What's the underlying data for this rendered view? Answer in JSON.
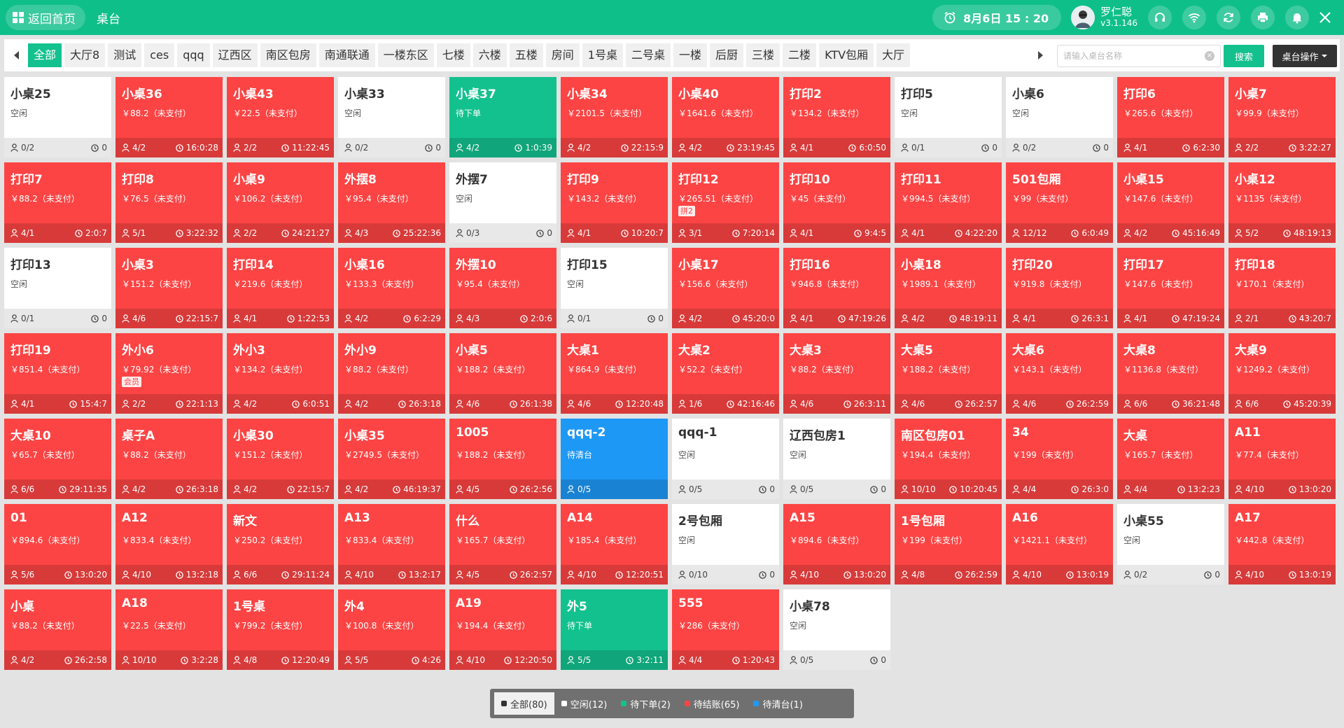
{
  "header": {
    "home_label": "返回首页",
    "title": "桌台",
    "datetime": "8月6日  15 : 20",
    "user_name": "罗仁聪",
    "version": "v3.1.146"
  },
  "colors": {
    "green": "#13c18e",
    "red": "#fc4444",
    "blue": "#1e98f5",
    "white": "#ffffff"
  },
  "areas": [
    "全部",
    "大厅8",
    "测试",
    "ces",
    "qqq",
    "辽西区",
    "南区包房",
    "南通联通",
    "一楼东区",
    "七楼",
    "六楼",
    "五楼",
    "房间",
    "1号桌",
    "二号桌",
    "一楼",
    "后厨",
    "三楼",
    "二楼",
    "KTV包厢",
    "大厅"
  ],
  "search": {
    "placeholder": "请输入桌台名称",
    "button": "搜索"
  },
  "ops_button": "桌台操作",
  "tables": [
    {
      "name": "小桌25",
      "status": "white",
      "info": "空闲",
      "guests": "0/2",
      "time": "0"
    },
    {
      "name": "小桌36",
      "status": "red",
      "info": "￥88.2（未支付）",
      "guests": "4/2",
      "time": "16:0:28"
    },
    {
      "name": "小桌43",
      "status": "red",
      "info": "￥22.5（未支付）",
      "guests": "2/2",
      "time": "11:22:45"
    },
    {
      "name": "小桌33",
      "status": "white",
      "info": "空闲",
      "guests": "0/2",
      "time": "0"
    },
    {
      "name": "小桌37",
      "status": "green",
      "info": "待下单",
      "guests": "4/2",
      "time": "1:0:39"
    },
    {
      "name": "小桌34",
      "status": "red",
      "info": "￥2101.5（未支付）",
      "guests": "4/2",
      "time": "22:15:9"
    },
    {
      "name": "小桌40",
      "status": "red",
      "info": "￥1641.6（未支付）",
      "guests": "4/2",
      "time": "23:19:45"
    },
    {
      "name": "打印2",
      "status": "red",
      "info": "￥134.2（未支付）",
      "guests": "4/1",
      "time": "6:0:50"
    },
    {
      "name": "打印5",
      "status": "white",
      "info": "空闲",
      "guests": "0/1",
      "time": "0"
    },
    {
      "name": "小桌6",
      "status": "white",
      "info": "空闲",
      "guests": "0/2",
      "time": "0"
    },
    {
      "name": "打印6",
      "status": "red",
      "info": "￥265.6（未支付）",
      "guests": "4/1",
      "time": "6:2:30"
    },
    {
      "name": "小桌7",
      "status": "red",
      "info": "￥99.9（未支付）",
      "guests": "2/2",
      "time": "3:22:27"
    },
    {
      "name": "打印7",
      "status": "red",
      "info": "￥88.2（未支付）",
      "guests": "4/1",
      "time": "2:0:7"
    },
    {
      "name": "打印8",
      "status": "red",
      "info": "￥76.5（未支付）",
      "guests": "5/1",
      "time": "3:22:32"
    },
    {
      "name": "小桌9",
      "status": "red",
      "info": "￥106.2（未支付）",
      "guests": "2/2",
      "time": "24:21:27"
    },
    {
      "name": "外摆8",
      "status": "red",
      "info": "￥95.4（未支付）",
      "guests": "4/3",
      "time": "25:22:36"
    },
    {
      "name": "外摆7",
      "status": "white",
      "info": "空闲",
      "guests": "0/3",
      "time": "0"
    },
    {
      "name": "打印9",
      "status": "red",
      "info": "￥143.2（未支付）",
      "guests": "4/1",
      "time": "10:20:7"
    },
    {
      "name": "打印12",
      "status": "red",
      "info": "￥265.51（未支付）",
      "tag": "拼2",
      "guests": "3/1",
      "time": "7:20:14"
    },
    {
      "name": "打印10",
      "status": "red",
      "info": "￥45（未支付）",
      "guests": "4/1",
      "time": "9:4:5"
    },
    {
      "name": "打印11",
      "status": "red",
      "info": "￥994.5（未支付）",
      "guests": "4/1",
      "time": "4:22:20"
    },
    {
      "name": "501包厢",
      "status": "red",
      "info": "￥99（未支付）",
      "guests": "12/12",
      "time": "6:0:49"
    },
    {
      "name": "小桌15",
      "status": "red",
      "info": "￥147.6（未支付）",
      "guests": "4/2",
      "time": "45:16:49"
    },
    {
      "name": "小桌12",
      "status": "red",
      "info": "￥1135（未支付）",
      "guests": "5/2",
      "time": "48:19:13"
    },
    {
      "name": "打印13",
      "status": "white",
      "info": "空闲",
      "guests": "0/1",
      "time": "0"
    },
    {
      "name": "小桌3",
      "status": "red",
      "info": "￥151.2（未支付）",
      "guests": "4/6",
      "time": "22:15:7"
    },
    {
      "name": "打印14",
      "status": "red",
      "info": "￥219.6（未支付）",
      "guests": "4/1",
      "time": "1:22:53"
    },
    {
      "name": "小桌16",
      "status": "red",
      "info": "￥133.3（未支付）",
      "guests": "4/2",
      "time": "6:2:29"
    },
    {
      "name": "外摆10",
      "status": "red",
      "info": "￥95.4（未支付）",
      "guests": "4/3",
      "time": "2:0:6"
    },
    {
      "name": "打印15",
      "status": "white",
      "info": "空闲",
      "guests": "0/1",
      "time": "0"
    },
    {
      "name": "小桌17",
      "status": "red",
      "info": "￥156.6（未支付）",
      "guests": "4/2",
      "time": "45:20:0"
    },
    {
      "name": "打印16",
      "status": "red",
      "info": "￥946.8（未支付）",
      "guests": "4/1",
      "time": "47:19:26"
    },
    {
      "name": "小桌18",
      "status": "red",
      "info": "￥1989.1（未支付）",
      "guests": "4/2",
      "time": "48:19:11"
    },
    {
      "name": "打印20",
      "status": "red",
      "info": "￥919.8（未支付）",
      "guests": "4/1",
      "time": "26:3:1"
    },
    {
      "name": "打印17",
      "status": "red",
      "info": "￥147.6（未支付）",
      "guests": "4/1",
      "time": "47:19:24"
    },
    {
      "name": "打印18",
      "status": "red",
      "info": "￥170.1（未支付）",
      "guests": "2/1",
      "time": "43:20:7"
    },
    {
      "name": "打印19",
      "status": "red",
      "info": "￥851.4（未支付）",
      "guests": "4/1",
      "time": "15:4:7"
    },
    {
      "name": "外小6",
      "status": "red",
      "info": "￥79.92（未支付）",
      "tag": "会员",
      "guests": "2/2",
      "time": "22:1:13"
    },
    {
      "name": "外小3",
      "status": "red",
      "info": "￥134.2（未支付）",
      "guests": "4/2",
      "time": "6:0:51"
    },
    {
      "name": "外小9",
      "status": "red",
      "info": "￥88.2（未支付）",
      "guests": "4/2",
      "time": "26:3:18"
    },
    {
      "name": "小桌5",
      "status": "red",
      "info": "￥188.2（未支付）",
      "guests": "4/6",
      "time": "26:1:38"
    },
    {
      "name": "大桌1",
      "status": "red",
      "info": "￥864.9（未支付）",
      "guests": "4/6",
      "time": "12:20:48"
    },
    {
      "name": "大桌2",
      "status": "red",
      "info": "￥52.2（未支付）",
      "guests": "1/6",
      "time": "42:16:46"
    },
    {
      "name": "大桌3",
      "status": "red",
      "info": "￥88.2（未支付）",
      "guests": "4/6",
      "time": "26:3:11"
    },
    {
      "name": "大桌5",
      "status": "red",
      "info": "￥188.2（未支付）",
      "guests": "4/6",
      "time": "26:2:57"
    },
    {
      "name": "大桌6",
      "status": "red",
      "info": "￥143.1（未支付）",
      "guests": "4/6",
      "time": "26:2:59"
    },
    {
      "name": "大桌8",
      "status": "red",
      "info": "￥1136.8（未支付）",
      "guests": "6/6",
      "time": "36:21:48"
    },
    {
      "name": "大桌9",
      "status": "red",
      "info": "￥1249.2（未支付）",
      "guests": "6/6",
      "time": "45:20:39"
    },
    {
      "name": "大桌10",
      "status": "red",
      "info": "￥65.7（未支付）",
      "guests": "6/6",
      "time": "29:11:35"
    },
    {
      "name": "桌子A",
      "status": "red",
      "info": "￥88.2（未支付）",
      "guests": "4/2",
      "time": "26:3:18"
    },
    {
      "name": "小桌30",
      "status": "red",
      "info": "￥151.2（未支付）",
      "guests": "4/2",
      "time": "22:15:7"
    },
    {
      "name": "小桌35",
      "status": "red",
      "info": "￥2749.5（未支付）",
      "guests": "4/2",
      "time": "46:19:37"
    },
    {
      "name": "1005",
      "status": "red",
      "info": "￥188.2（未支付）",
      "guests": "4/5",
      "time": "26:2:56"
    },
    {
      "name": "qqq-2",
      "status": "blue",
      "info": "待清台",
      "guests": "0/5",
      "time": ""
    },
    {
      "name": "qqq-1",
      "status": "white",
      "info": "空闲",
      "guests": "0/5",
      "time": "0"
    },
    {
      "name": "辽西包房1",
      "status": "white",
      "info": "空闲",
      "guests": "0/5",
      "time": "0"
    },
    {
      "name": "南区包房01",
      "status": "red",
      "info": "￥194.4（未支付）",
      "guests": "10/10",
      "time": "10:20:45"
    },
    {
      "name": "34",
      "status": "red",
      "info": "￥199（未支付）",
      "guests": "4/4",
      "time": "26:3:0"
    },
    {
      "name": "大桌",
      "status": "red",
      "info": "￥165.7（未支付）",
      "guests": "4/4",
      "time": "13:2:23"
    },
    {
      "name": "A11",
      "status": "red",
      "info": "￥77.4（未支付）",
      "guests": "4/10",
      "time": "13:0:20"
    },
    {
      "name": "01",
      "status": "red",
      "info": "￥894.6（未支付）",
      "guests": "5/6",
      "time": "13:0:20"
    },
    {
      "name": "A12",
      "status": "red",
      "info": "￥833.4（未支付）",
      "guests": "4/10",
      "time": "13:2:18"
    },
    {
      "name": "新文",
      "status": "red",
      "info": "￥250.2（未支付）",
      "guests": "6/6",
      "time": "29:11:24"
    },
    {
      "name": "A13",
      "status": "red",
      "info": "￥833.4（未支付）",
      "guests": "4/10",
      "time": "13:2:17"
    },
    {
      "name": "什么",
      "status": "red",
      "info": "￥165.7（未支付）",
      "guests": "4/5",
      "time": "26:2:57"
    },
    {
      "name": "A14",
      "status": "red",
      "info": "￥185.4（未支付）",
      "guests": "4/10",
      "time": "12:20:51"
    },
    {
      "name": "2号包厢",
      "status": "white",
      "info": "空闲",
      "guests": "0/10",
      "time": "0"
    },
    {
      "name": "A15",
      "status": "red",
      "info": "￥894.6（未支付）",
      "guests": "4/10",
      "time": "13:0:20"
    },
    {
      "name": "1号包厢",
      "status": "red",
      "info": "￥199（未支付）",
      "guests": "4/8",
      "time": "26:2:59"
    },
    {
      "name": "A16",
      "status": "red",
      "info": "￥1421.1（未支付）",
      "guests": "4/10",
      "time": "13:0:19"
    },
    {
      "name": "小桌55",
      "status": "white",
      "info": "空闲",
      "guests": "0/2",
      "time": "0"
    },
    {
      "name": "A17",
      "status": "red",
      "info": "￥442.8（未支付）",
      "guests": "4/10",
      "time": "13:0:19"
    },
    {
      "name": "小桌",
      "status": "red",
      "info": "￥88.2（未支付）",
      "guests": "4/2",
      "time": "26:2:58"
    },
    {
      "name": "A18",
      "status": "red",
      "info": "￥22.5（未支付）",
      "guests": "10/10",
      "time": "3:2:28"
    },
    {
      "name": "1号桌",
      "status": "red",
      "info": "￥799.2（未支付）",
      "guests": "4/8",
      "time": "12:20:49"
    },
    {
      "name": "外4",
      "status": "red",
      "info": "￥100.8（未支付）",
      "guests": "5/5",
      "time": "4:26"
    },
    {
      "name": "A19",
      "status": "red",
      "info": "￥194.4（未支付）",
      "guests": "4/10",
      "time": "12:20:50"
    },
    {
      "name": "外5",
      "status": "green",
      "info": "待下单",
      "guests": "5/5",
      "time": "3:2:11"
    },
    {
      "name": "555",
      "status": "red",
      "info": "￥286（未支付）",
      "guests": "4/4",
      "time": "1:20:43"
    },
    {
      "name": "小桌78",
      "status": "white",
      "info": "空闲",
      "guests": "0/5",
      "time": "0"
    }
  ],
  "status_filters": [
    {
      "label": "全部(80)",
      "color": "#333333",
      "active": true
    },
    {
      "label": "空闲(12)",
      "color": "#ffffff",
      "active": false
    },
    {
      "label": "待下单(2)",
      "color": "#13c18e",
      "active": false
    },
    {
      "label": "待结账(65)",
      "color": "#fc4444",
      "active": false
    },
    {
      "label": "待清台(1)",
      "color": "#1e98f5",
      "active": false
    }
  ]
}
